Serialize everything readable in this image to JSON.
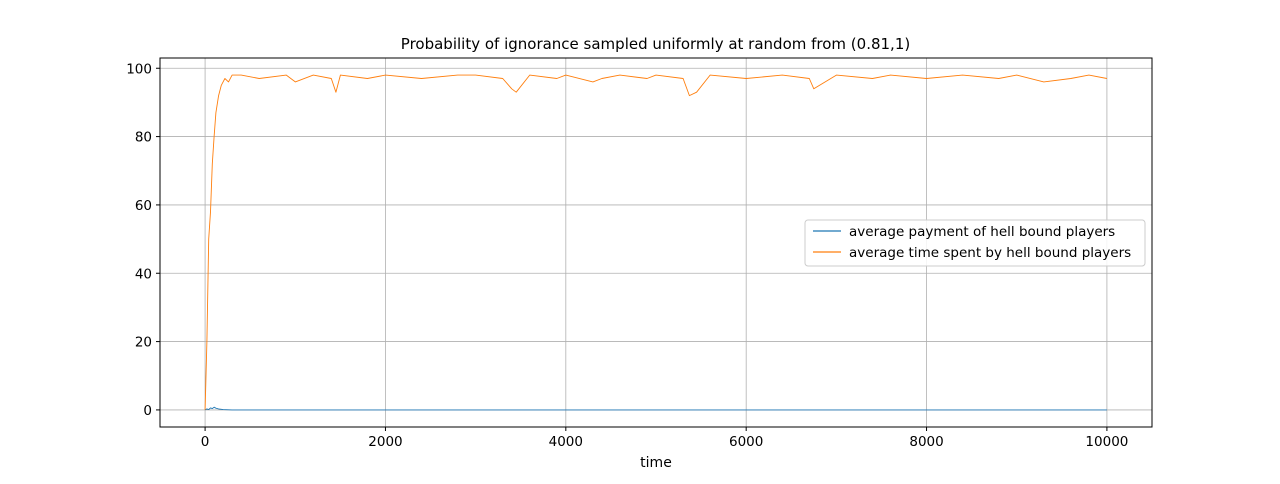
{
  "chart_data": {
    "type": "line",
    "title": "Probability of ignorance sampled uniformly at random from (0.81,1)",
    "xlabel": "time",
    "ylabel": "",
    "xlim": [
      -500,
      10500
    ],
    "ylim": [
      -5,
      103
    ],
    "x_ticks": [
      0,
      2000,
      4000,
      6000,
      8000,
      10000
    ],
    "y_ticks": [
      0,
      20,
      40,
      60,
      80,
      100
    ],
    "grid": true,
    "legend_position": "center-right",
    "series": [
      {
        "name": "average payment of hell bound players",
        "color": "#1f77b4",
        "x": [
          0,
          20,
          40,
          60,
          80,
          100,
          120,
          150,
          200,
          300,
          1000,
          3000,
          5000,
          7000,
          9000,
          10000
        ],
        "values": [
          0,
          0.3,
          0.1,
          0.6,
          0.4,
          0.8,
          0.5,
          0.3,
          0.1,
          0,
          0,
          0,
          0,
          0,
          0,
          0
        ]
      },
      {
        "name": "average time spent by hell bound players",
        "color": "#ff7f0e",
        "x": [
          0,
          20,
          40,
          60,
          80,
          100,
          120,
          150,
          180,
          220,
          260,
          300,
          400,
          600,
          900,
          1000,
          1200,
          1400,
          1450,
          1500,
          1800,
          2000,
          2400,
          2800,
          3000,
          3300,
          3400,
          3450,
          3600,
          3900,
          4000,
          4300,
          4400,
          4600,
          4900,
          5000,
          5300,
          5370,
          5450,
          5600,
          6000,
          6400,
          6700,
          6750,
          7000,
          7400,
          7600,
          8000,
          8400,
          8800,
          9000,
          9300,
          9600,
          9800,
          10000
        ],
        "values": [
          0,
          20,
          50,
          58,
          72,
          80,
          87,
          92,
          95,
          97,
          96,
          98,
          98,
          97,
          98,
          96,
          98,
          97,
          93,
          98,
          97,
          98,
          97,
          98,
          98,
          97,
          94,
          93,
          98,
          97,
          98,
          96,
          97,
          98,
          97,
          98,
          97,
          92,
          93,
          98,
          97,
          98,
          97,
          94,
          98,
          97,
          98,
          97,
          98,
          97,
          98,
          96,
          97,
          98,
          97
        ]
      }
    ]
  }
}
